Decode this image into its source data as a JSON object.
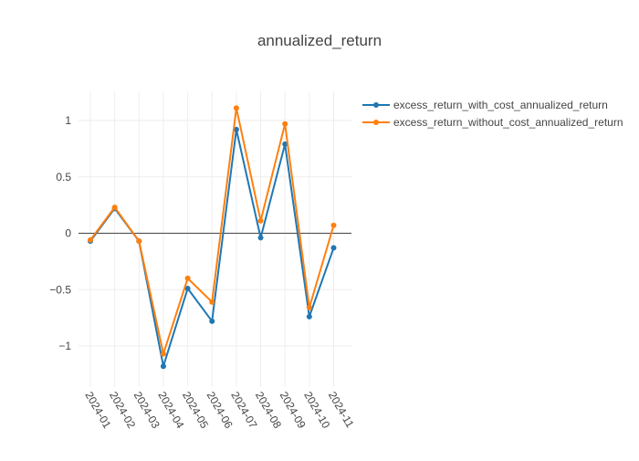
{
  "chart_data": {
    "type": "line",
    "title": "annualized_return",
    "xlabel": "",
    "ylabel": "",
    "categories": [
      "2024-01",
      "2024-02",
      "2024-03",
      "2024-04",
      "2024-05",
      "2024-06",
      "2024-07",
      "2024-08",
      "2024-09",
      "2024-10",
      "2024-11"
    ],
    "y_ticks": [
      1,
      0.5,
      0,
      -0.5,
      -1
    ],
    "y_tick_labels": [
      "1",
      "0.5",
      "0",
      "−0.5",
      "−1"
    ],
    "ylim": [
      -1.35,
      1.27
    ],
    "grid": true,
    "zero_line": true,
    "legend_position": "top-right",
    "series": [
      {
        "name": "excess_return_with_cost_annualized_return",
        "color": "#1f77b4",
        "values": [
          -0.07,
          0.22,
          -0.07,
          -1.18,
          -0.49,
          -0.78,
          0.92,
          -0.04,
          0.79,
          -0.74,
          -0.13
        ]
      },
      {
        "name": "excess_return_without_cost_annualized_return",
        "color": "#ff7f0e",
        "values": [
          -0.06,
          0.23,
          -0.07,
          -1.07,
          -0.4,
          -0.61,
          1.11,
          0.11,
          0.97,
          -0.66,
          0.07
        ]
      }
    ]
  }
}
